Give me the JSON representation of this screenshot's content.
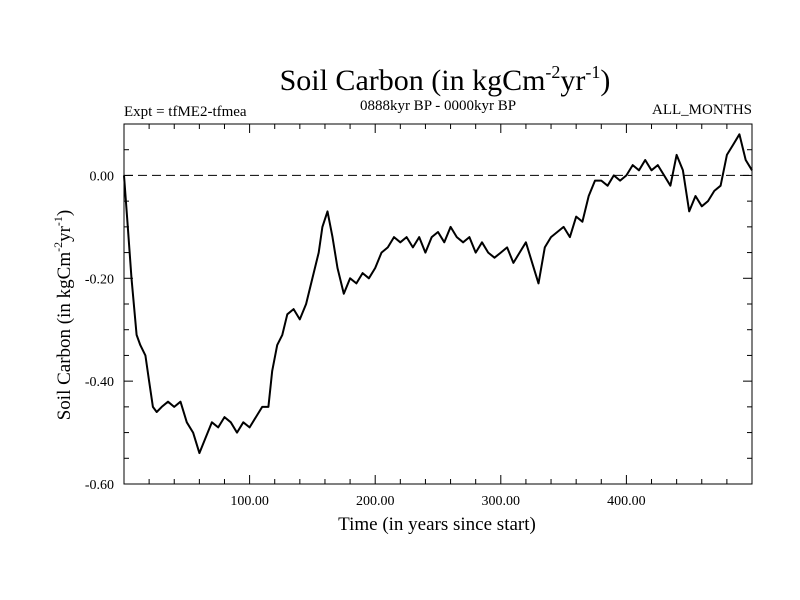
{
  "chart_data": {
    "type": "line",
    "title": "Soil Carbon (in kgCm-2yr-1)",
    "title_parts": {
      "base": "Soil Carbon (in kgCm",
      "sup1": "-2",
      "mid": "yr",
      "sup2": "-1",
      "end": ")"
    },
    "subtitle_left": "Expt = tfME2-tfmea",
    "subtitle_center": "0888kyr BP - 0000kyr BP",
    "subtitle_right": "ALL_MONTHS",
    "xlabel": "Time (in years since start)",
    "ylabel": "Soil Carbon (in kgCm-2yr-1)",
    "ylabel_parts": {
      "base": "Soil Carbon (in kgCm",
      "sup1": "-2",
      "mid": "yr",
      "sup2": "-1",
      "end": ")"
    },
    "xlim": [
      0,
      500
    ],
    "ylim": [
      -0.6,
      0.1
    ],
    "xticks": [
      100,
      200,
      300,
      400
    ],
    "xtick_labels": [
      "100.00",
      "200.00",
      "300.00",
      "400.00"
    ],
    "yticks": [
      -0.6,
      -0.4,
      -0.2,
      0.0
    ],
    "ytick_labels": [
      "-0.60",
      "-0.40",
      "-0.20",
      "0.00"
    ],
    "reference_line": {
      "y": 0.0,
      "style": "dashed"
    },
    "series": [
      {
        "name": "Soil Carbon",
        "x": [
          0,
          3,
          6,
          10,
          13,
          17,
          20,
          23,
          26,
          30,
          35,
          40,
          45,
          50,
          55,
          60,
          65,
          70,
          75,
          80,
          85,
          90,
          95,
          100,
          105,
          110,
          115,
          118,
          122,
          126,
          130,
          135,
          140,
          145,
          150,
          155,
          158,
          162,
          166,
          170,
          175,
          180,
          185,
          190,
          195,
          200,
          205,
          210,
          215,
          220,
          225,
          230,
          235,
          240,
          245,
          250,
          255,
          260,
          265,
          270,
          275,
          280,
          285,
          290,
          295,
          300,
          305,
          310,
          315,
          320,
          325,
          330,
          335,
          340,
          345,
          350,
          355,
          360,
          365,
          370,
          375,
          380,
          385,
          390,
          395,
          400,
          405,
          410,
          415,
          420,
          425,
          430,
          435,
          440,
          445,
          450,
          455,
          460,
          465,
          470,
          475,
          480,
          485,
          490,
          495,
          500
        ],
        "y": [
          0.0,
          -0.1,
          -0.2,
          -0.31,
          -0.33,
          -0.35,
          -0.4,
          -0.45,
          -0.46,
          -0.45,
          -0.44,
          -0.45,
          -0.44,
          -0.48,
          -0.5,
          -0.54,
          -0.51,
          -0.48,
          -0.49,
          -0.47,
          -0.48,
          -0.5,
          -0.48,
          -0.49,
          -0.47,
          -0.45,
          -0.45,
          -0.38,
          -0.33,
          -0.31,
          -0.27,
          -0.26,
          -0.28,
          -0.25,
          -0.2,
          -0.15,
          -0.1,
          -0.07,
          -0.12,
          -0.18,
          -0.23,
          -0.2,
          -0.21,
          -0.19,
          -0.2,
          -0.18,
          -0.15,
          -0.14,
          -0.12,
          -0.13,
          -0.12,
          -0.14,
          -0.12,
          -0.15,
          -0.12,
          -0.11,
          -0.13,
          -0.1,
          -0.12,
          -0.13,
          -0.12,
          -0.15,
          -0.13,
          -0.15,
          -0.16,
          -0.15,
          -0.14,
          -0.17,
          -0.15,
          -0.13,
          -0.17,
          -0.21,
          -0.14,
          -0.12,
          -0.11,
          -0.1,
          -0.12,
          -0.08,
          -0.09,
          -0.04,
          -0.01,
          -0.01,
          -0.02,
          0.0,
          -0.01,
          0.0,
          0.02,
          0.01,
          0.03,
          0.01,
          0.02,
          0.0,
          -0.02,
          0.04,
          0.01,
          -0.07,
          -0.04,
          -0.06,
          -0.05,
          -0.03,
          -0.02,
          0.04,
          0.06,
          0.08,
          0.03,
          0.01
        ]
      }
    ]
  }
}
